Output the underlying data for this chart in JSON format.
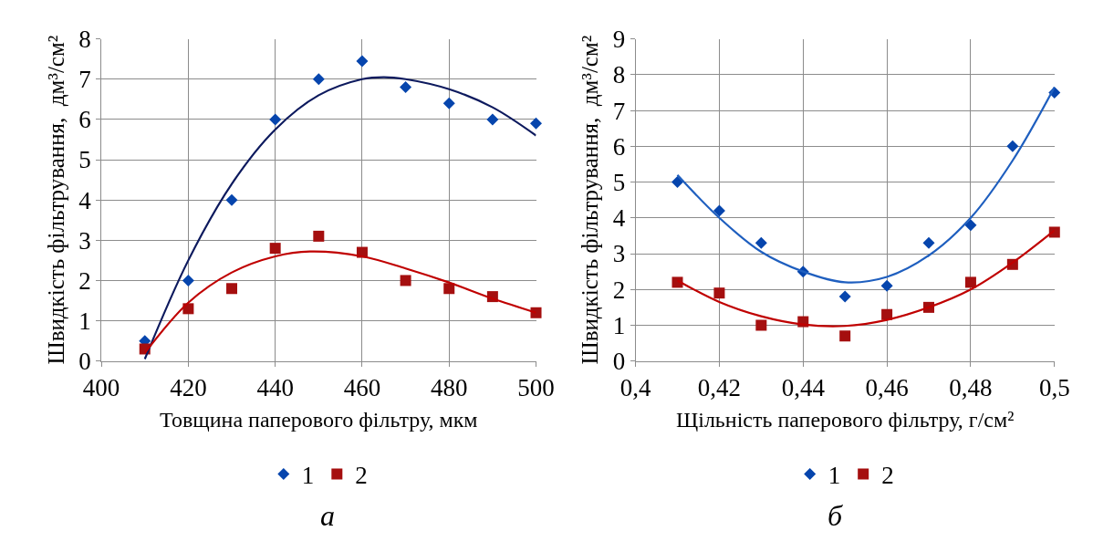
{
  "chart_data": [
    {
      "type": "scatter",
      "xlabel": "Товщина паперового фільтру, мкм",
      "ylabel": "Швидкість фільтрування,  дм³/см²",
      "x": [
        410,
        420,
        430,
        440,
        450,
        460,
        470,
        480,
        490,
        500
      ],
      "xlim": [
        400,
        500
      ],
      "xticks": [
        400,
        420,
        440,
        460,
        480,
        500
      ],
      "ylim": [
        0,
        8
      ],
      "yticks": [
        0,
        1,
        2,
        3,
        4,
        5,
        6,
        7,
        8
      ],
      "grid": true,
      "legend": "bottom",
      "annotations": [
        "а"
      ],
      "series": [
        {
          "name": "1",
          "color": "#0645ad",
          "marker": "diamond",
          "values": [
            0.5,
            2,
            4,
            6,
            7,
            7.45,
            6.8,
            6.4,
            6,
            5.9
          ]
        },
        {
          "name": "2",
          "color": "#a50f0f",
          "marker": "square",
          "values": [
            0.3,
            1.3,
            1.8,
            2.8,
            3.1,
            2.7,
            2,
            1.8,
            1.6,
            1.2
          ]
        },
        {
          "type": "line",
          "color": "#0d1a5e",
          "x": [
            410,
            420,
            430,
            440,
            450,
            460,
            465,
            470,
            480,
            490,
            500
          ],
          "values": [
            0.05,
            2.5,
            4.4,
            5.75,
            6.6,
            7.0,
            7.05,
            7.0,
            6.75,
            6.3,
            5.6
          ]
        },
        {
          "type": "line",
          "color": "#c00000",
          "x": [
            410,
            420,
            430,
            440,
            448,
            460,
            470,
            480,
            490,
            500
          ],
          "values": [
            0.2,
            1.45,
            2.2,
            2.6,
            2.72,
            2.6,
            2.3,
            1.95,
            1.55,
            1.2
          ]
        }
      ]
    },
    {
      "type": "scatter",
      "xlabel": "Щільність паперового фільтру, г/см²",
      "ylabel": "Швидкість фільтрування,  дм³/см²",
      "x": [
        0.41,
        0.42,
        0.43,
        0.44,
        0.45,
        0.46,
        0.47,
        0.48,
        0.49,
        0.5
      ],
      "xlim": [
        0.4,
        0.5
      ],
      "xticks": [
        {
          "value": 0.4,
          "label": "0,4"
        },
        {
          "value": 0.42,
          "label": "0,42"
        },
        {
          "value": 0.44,
          "label": "0,44"
        },
        {
          "value": 0.46,
          "label": "0,46"
        },
        {
          "value": 0.48,
          "label": "0,48"
        },
        {
          "value": 0.5,
          "label": "0,5"
        }
      ],
      "ylim": [
        0,
        9
      ],
      "yticks": [
        0,
        1,
        2,
        3,
        4,
        5,
        6,
        7,
        8,
        9
      ],
      "grid": true,
      "legend": "bottom",
      "annotations": [
        "б"
      ],
      "series": [
        {
          "name": "1",
          "color": "#0645ad",
          "marker": "diamond",
          "values": [
            5,
            4.2,
            3.3,
            2.5,
            1.8,
            2.1,
            3.3,
            3.8,
            6,
            7.5
          ]
        },
        {
          "name": "2",
          "color": "#a50f0f",
          "marker": "square",
          "values": [
            2.2,
            1.9,
            1.0,
            1.1,
            0.7,
            1.3,
            1.5,
            2.2,
            2.7,
            3.6
          ]
        },
        {
          "type": "line",
          "color": "#1f5fbf",
          "x": [
            0.41,
            0.42,
            0.43,
            0.44,
            0.45,
            0.46,
            0.47,
            0.48,
            0.49,
            0.5
          ],
          "values": [
            5.2,
            4.0,
            3.05,
            2.5,
            2.2,
            2.35,
            2.95,
            4.0,
            5.6,
            7.65
          ]
        },
        {
          "type": "line",
          "color": "#c00000",
          "x": [
            0.41,
            0.42,
            0.43,
            0.44,
            0.45,
            0.46,
            0.47,
            0.48,
            0.49,
            0.5
          ],
          "values": [
            2.25,
            1.65,
            1.25,
            1.02,
            0.98,
            1.15,
            1.5,
            2.0,
            2.75,
            3.65
          ]
        }
      ]
    }
  ]
}
